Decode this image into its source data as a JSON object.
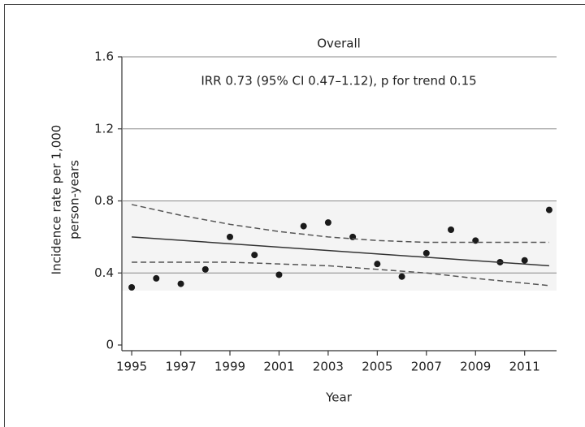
{
  "chart_data": {
    "type": "scatter",
    "title": "Overall",
    "annotation": "IRR 0.73 (95% CI 0.47–1.12), p for trend 0.15",
    "x_label": "Year",
    "y_label": [
      "Incidence rate per 1,000",
      "person-years"
    ],
    "x": [
      1995,
      1996,
      1997,
      1998,
      1999,
      2000,
      2001,
      2002,
      2003,
      2004,
      2005,
      2006,
      2007,
      2008,
      2009,
      2010,
      2011,
      2012
    ],
    "series": [
      {
        "type": "scatter",
        "color": "#1a1a1a",
        "values": [
          0.32,
          0.37,
          0.34,
          0.42,
          0.6,
          0.5,
          0.39,
          0.66,
          0.68,
          0.6,
          0.45,
          0.38,
          0.51,
          0.64,
          0.58,
          0.46,
          0.47,
          0.75
        ]
      },
      {
        "type": "line",
        "color": "#333333",
        "x": [
          1995,
          2012
        ],
        "values": [
          0.6,
          0.44
        ]
      },
      {
        "type": "line",
        "color": "#555555",
        "dashed": true,
        "x": [
          1995,
          1997,
          1999,
          2001,
          2003,
          2005,
          2007,
          2009,
          2012
        ],
        "values": [
          0.78,
          0.72,
          0.67,
          0.63,
          0.6,
          0.58,
          0.57,
          0.57,
          0.57
        ]
      },
      {
        "type": "line",
        "color": "#555555",
        "dashed": true,
        "x": [
          1995,
          1999,
          2001,
          2003,
          2005,
          2007,
          2009,
          2012
        ],
        "values": [
          0.46,
          0.46,
          0.45,
          0.44,
          0.42,
          0.4,
          0.37,
          0.33
        ]
      }
    ],
    "xlim": [
      1994.6,
      2012.3
    ],
    "ylim": [
      0,
      1.6
    ],
    "xticks": [
      1995,
      1997,
      1999,
      2001,
      2003,
      2005,
      2007,
      2009,
      2011
    ],
    "yticks": [
      0,
      0.4,
      0.8,
      1.2,
      1.6
    ],
    "grid": true
  }
}
